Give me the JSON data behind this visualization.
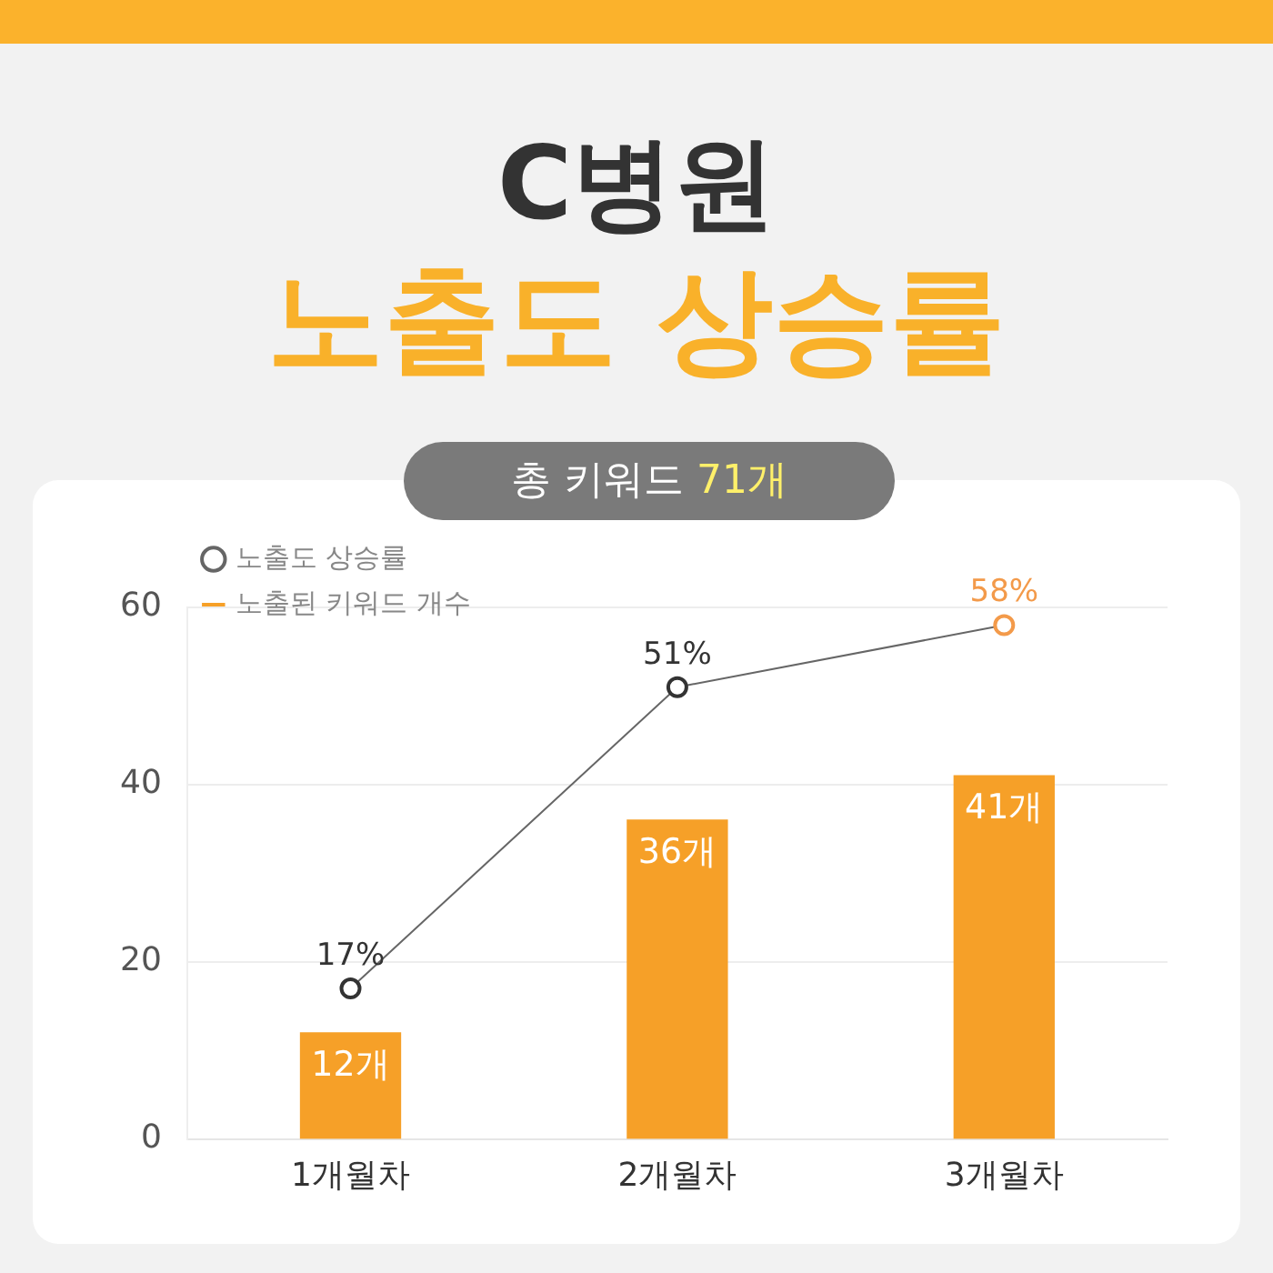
{
  "chart_data": {
    "type": "bar",
    "title": "C병원",
    "subtitle": "노출도 상승률",
    "annotations": [
      "총 키워드 71개"
    ],
    "categories": [
      "1개월차",
      "2개월차",
      "3개월차"
    ],
    "series": [
      {
        "name": "노출도 상승률",
        "type": "line",
        "color": "#666666",
        "colors": [
          "#333333",
          "#333333",
          "#f39a4a"
        ],
        "values": [
          17,
          51,
          58
        ],
        "value_labels": [
          "17%",
          "51%",
          "58%"
        ]
      },
      {
        "name": "노출된 키워드 개수",
        "type": "bar",
        "color": "#f6a028",
        "values": [
          12,
          36,
          41
        ],
        "value_labels": [
          "12개",
          "36개",
          "41개"
        ]
      }
    ],
    "ylim": [
      0,
      60
    ],
    "yticks": [
      0,
      20,
      40,
      60
    ],
    "grid": "y",
    "legend": "top left",
    "marker": "circle"
  }
}
